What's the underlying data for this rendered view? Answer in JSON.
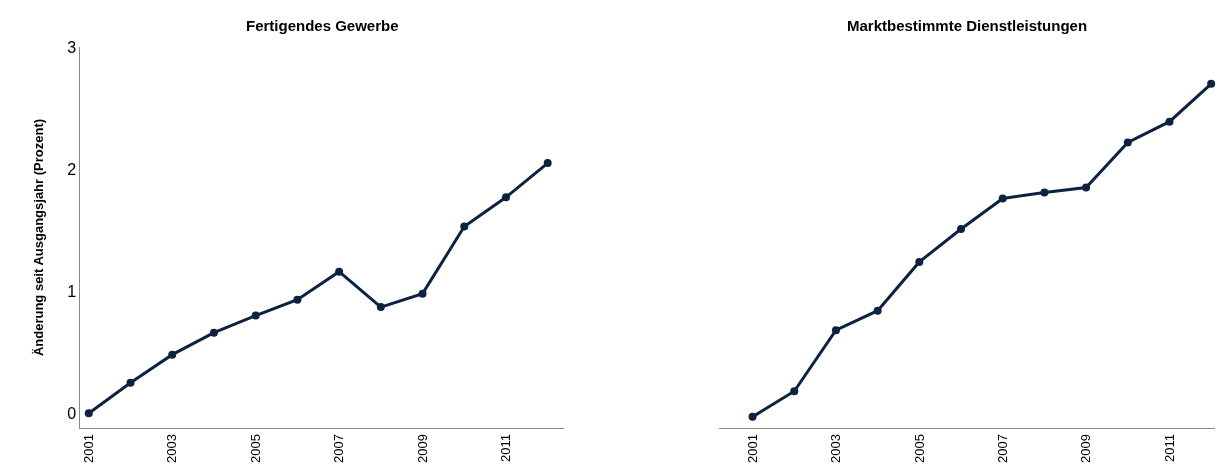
{
  "chart_data": [
    {
      "type": "line",
      "title": "Fertigendes Gewerbe",
      "ylabel": "Änderung seit Ausgangsjahr (Prozent)",
      "x": [
        2001,
        2002,
        2003,
        2004,
        2005,
        2006,
        2007,
        2008,
        2009,
        2010,
        2011,
        2012
      ],
      "series": [
        {
          "color": "#0d2240",
          "values": [
            0.0,
            0.25,
            0.48,
            0.66,
            0.8,
            0.93,
            1.16,
            0.87,
            0.98,
            1.53,
            1.77,
            2.05
          ]
        }
      ],
      "xlim": [
        2000.8,
        2012.4
      ],
      "xticks": [
        2001,
        2003,
        2005,
        2007,
        2009,
        2011
      ],
      "ylim": [
        -0.12,
        3
      ],
      "yticks": [
        0,
        1,
        2,
        3
      ],
      "marker": "circle",
      "line_style": "solid"
    },
    {
      "type": "line",
      "title": "Marktbestimmte Dienstleistungen",
      "x": [
        2001,
        2002,
        2003,
        2004,
        2005,
        2006,
        2007,
        2008,
        2009,
        2010,
        2011,
        2012
      ],
      "series": [
        {
          "color": "#0d2240",
          "values": [
            -0.03,
            0.18,
            0.68,
            0.84,
            1.24,
            1.51,
            1.76,
            1.81,
            1.85,
            2.22,
            2.39,
            2.7
          ]
        }
      ],
      "xlim": [
        2000.2,
        2012.1
      ],
      "xticks": [
        2001,
        2003,
        2005,
        2007,
        2009,
        2011
      ],
      "ylim": [
        -0.12,
        3
      ],
      "yticks": [
        0,
        1,
        2,
        3
      ],
      "tick_labels": "x",
      "marker": "circle",
      "line_style": "solid"
    }
  ]
}
